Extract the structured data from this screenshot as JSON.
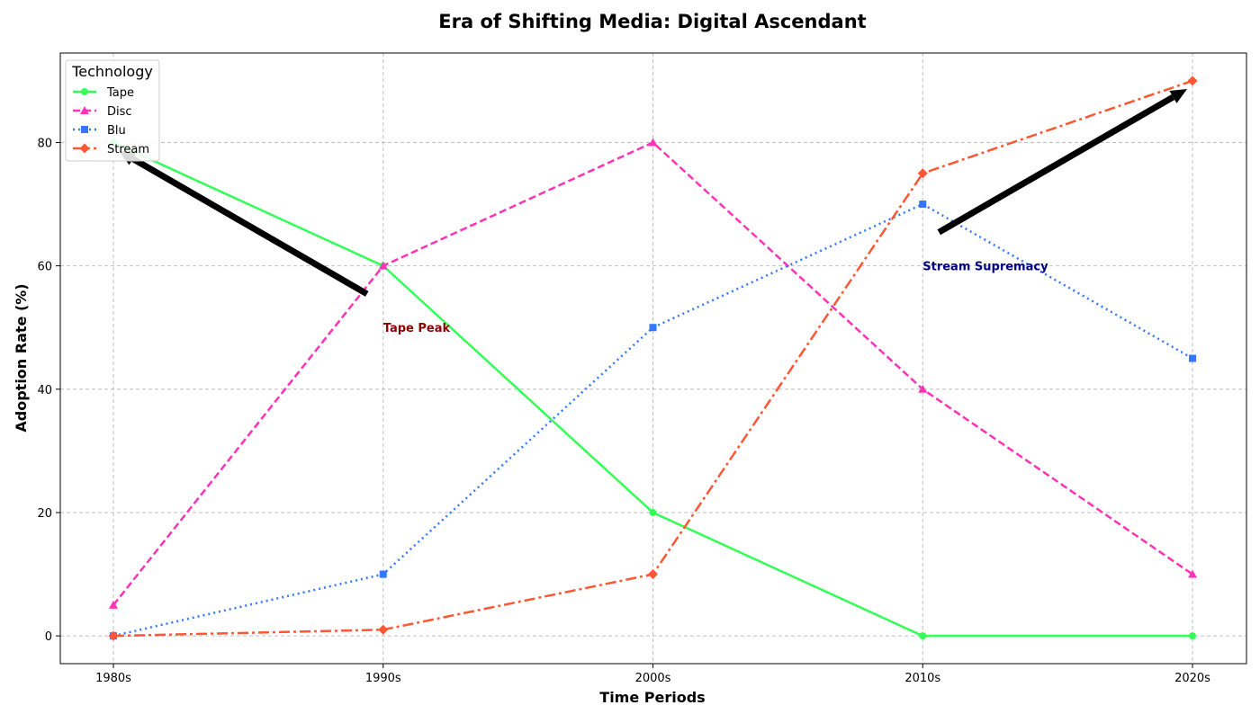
{
  "chart_data": {
    "type": "line",
    "title": "Era of Shifting Media: Digital Ascendant",
    "xlabel": "Time Periods",
    "ylabel": "Adoption Rate (%)",
    "categories": [
      "1980s",
      "1990s",
      "2000s",
      "2010s",
      "2020s"
    ],
    "ylim": [
      -4.5,
      94.5
    ],
    "yticks": [
      0,
      20,
      40,
      60,
      80
    ],
    "grid": true,
    "legend": {
      "title": "Technology",
      "placement": "top-left"
    },
    "series": [
      {
        "name": "Tape",
        "values": [
          80,
          60,
          20,
          0,
          0
        ],
        "color": "#33ff57",
        "linestyle": "solid",
        "marker": "circle"
      },
      {
        "name": "Disc",
        "values": [
          5,
          60,
          80,
          40,
          10
        ],
        "color": "#ff33b8",
        "linestyle": "dashed",
        "marker": "triangle"
      },
      {
        "name": "Blu",
        "values": [
          0,
          10,
          50,
          70,
          45
        ],
        "color": "#3377ff",
        "linestyle": "dotted",
        "marker": "square"
      },
      {
        "name": "Stream",
        "values": [
          0,
          1,
          10,
          75,
          90
        ],
        "color": "#ff5733",
        "linestyle": "dashdot",
        "marker": "diamond"
      }
    ],
    "annotations": [
      {
        "text": "Tape Peak",
        "color": "#8b0000",
        "point": [
          "1980s",
          80
        ],
        "text_at": [
          "1990s",
          50
        ]
      },
      {
        "text": "Stream Supremacy",
        "color": "#000080",
        "point": [
          "2020s",
          90
        ],
        "text_at": [
          "2010s",
          60
        ]
      }
    ]
  }
}
